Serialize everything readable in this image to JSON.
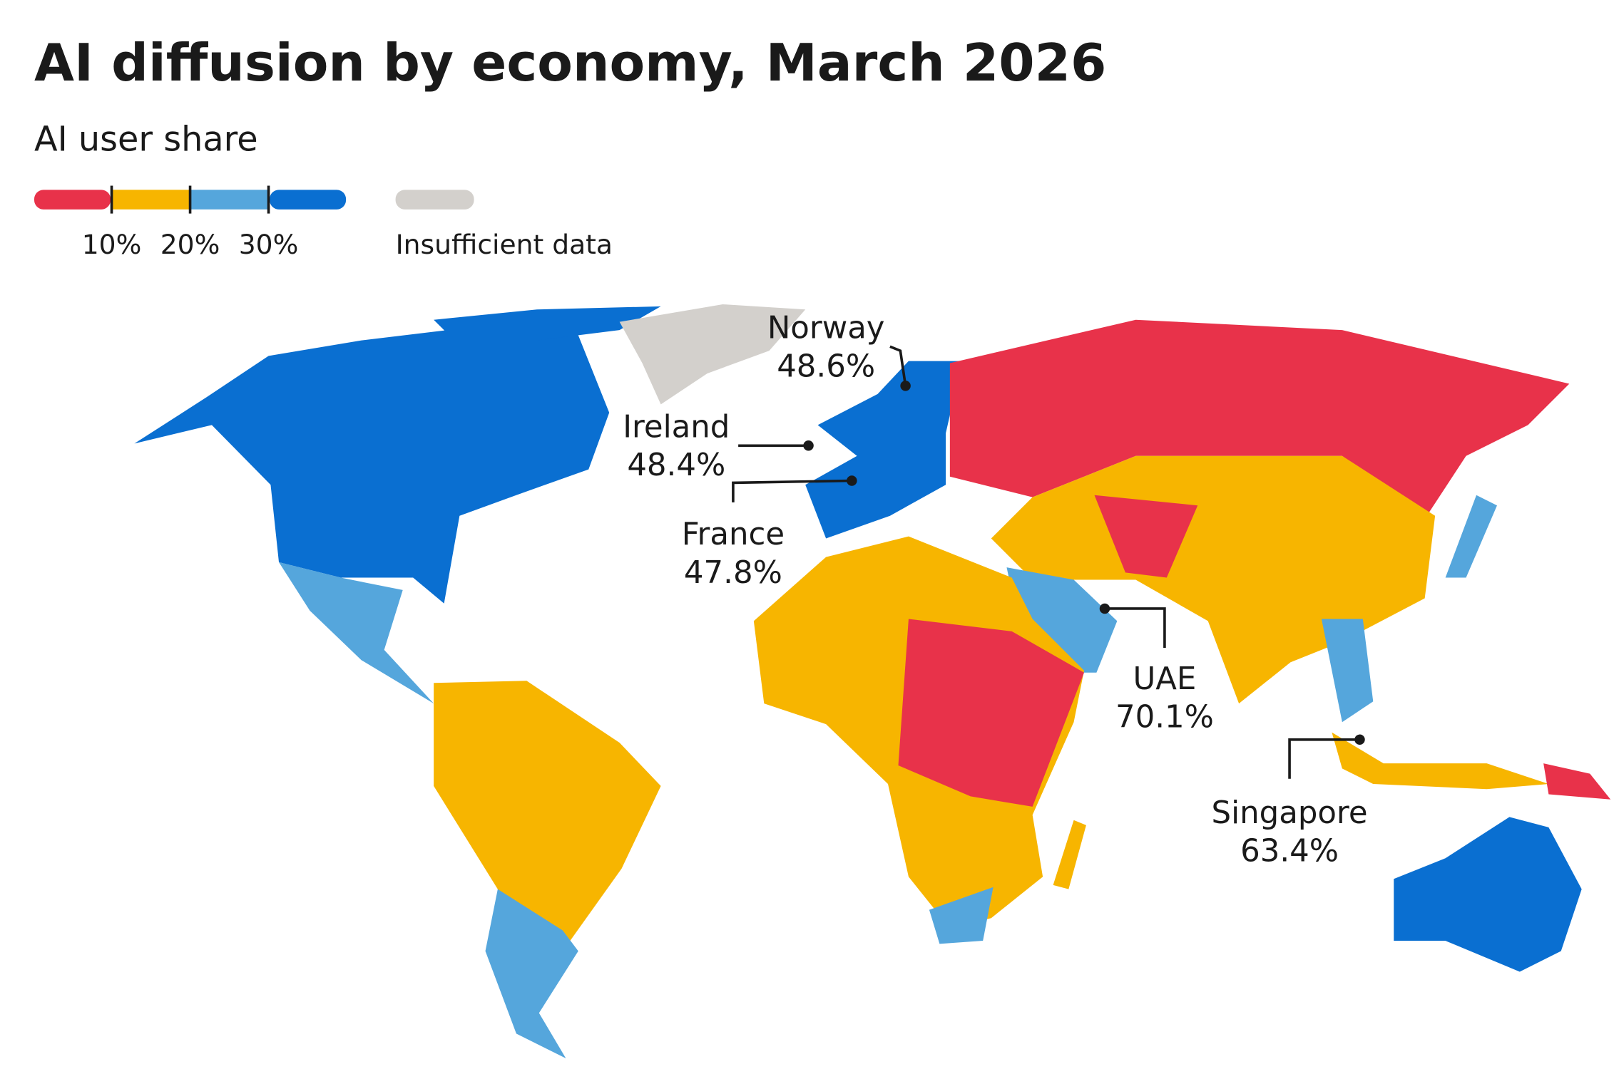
{
  "title": "AI diffusion by economy, March 2026",
  "subtitle": "AI user share",
  "legend": {
    "colors": [
      "#e8324a",
      "#f7b500",
      "#55a6dc",
      "#0a6fd1"
    ],
    "thresholds": [
      {
        "value": 10,
        "label": "10%"
      },
      {
        "value": 20,
        "label": "20%"
      },
      {
        "value": 30,
        "label": "30%"
      }
    ],
    "insufficient_data": {
      "label": "Insufficient data",
      "color": "#d3d0cc"
    }
  },
  "callouts": [
    {
      "name": "Norway",
      "value": 48.6,
      "value_label": "48.6%"
    },
    {
      "name": "Ireland",
      "value": 48.4,
      "value_label": "48.4%"
    },
    {
      "name": "France",
      "value": 47.8,
      "value_label": "47.8%"
    },
    {
      "name": "UAE",
      "value": 70.1,
      "value_label": "70.1%"
    },
    {
      "name": "Singapore",
      "value": 63.4,
      "value_label": "63.4%"
    }
  ]
}
